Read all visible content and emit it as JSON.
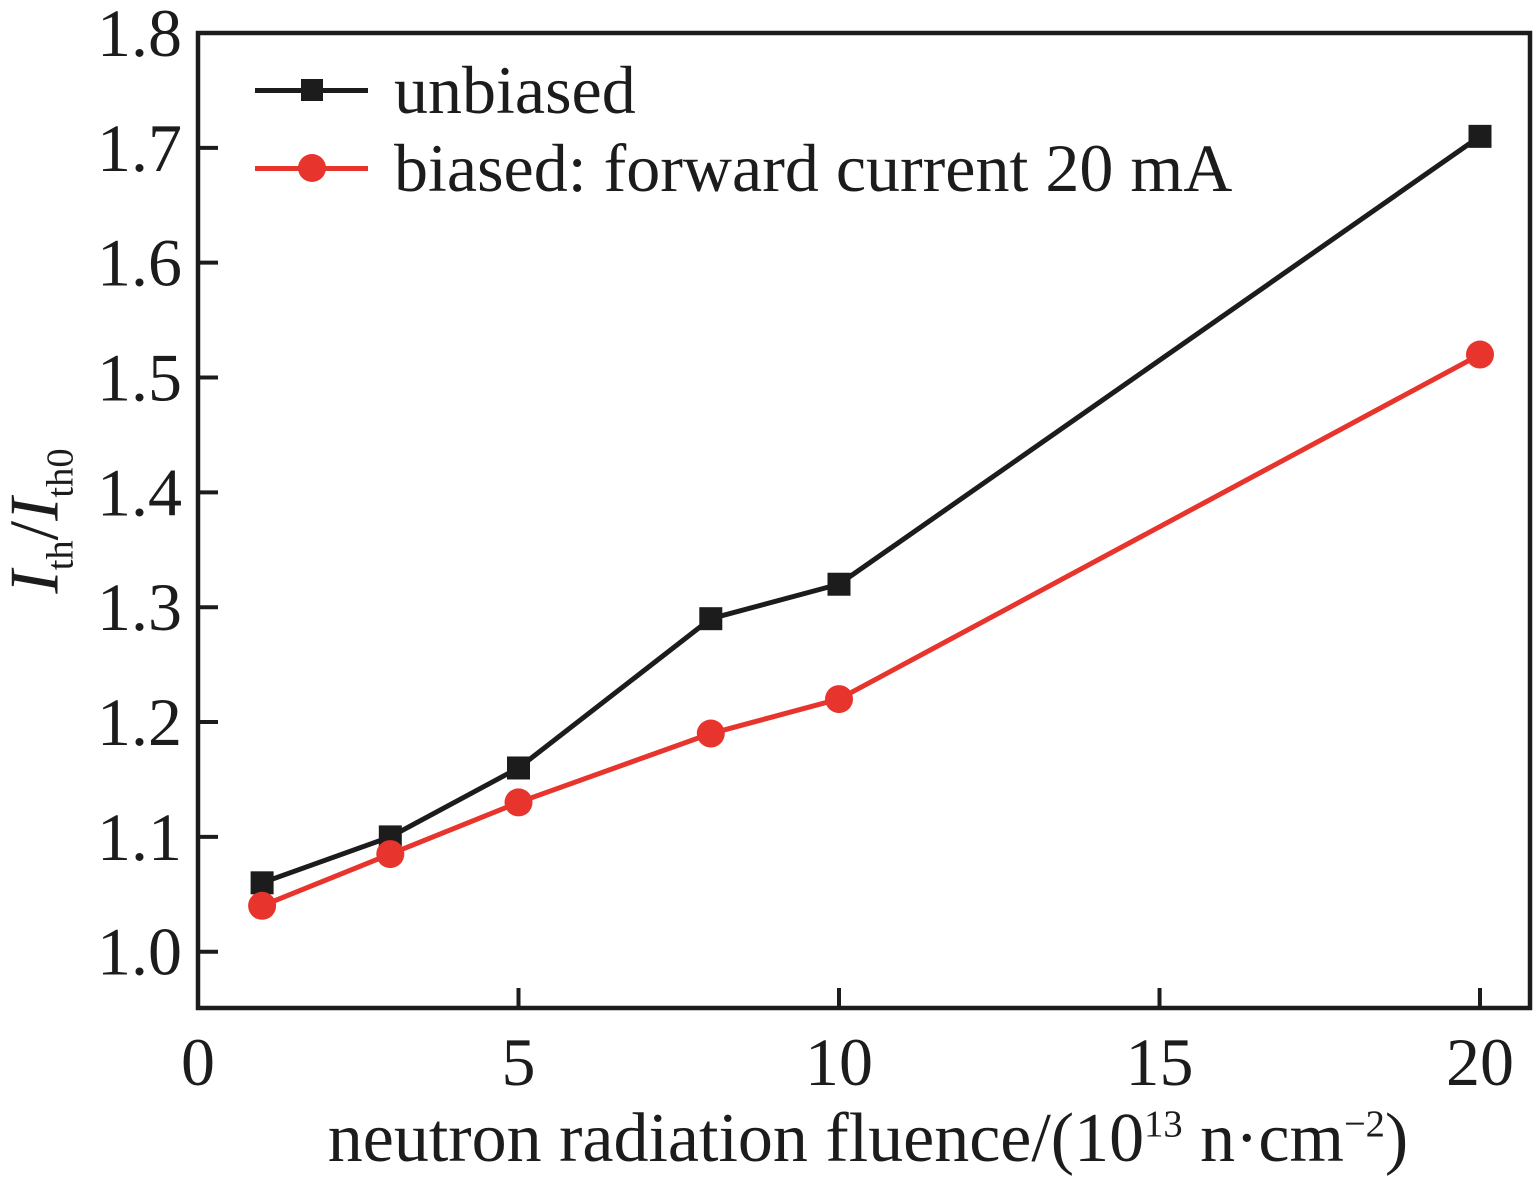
{
  "chart_data": {
    "type": "line",
    "title": "",
    "xlabel_text": "neutron radiation fluence/(10^13 n·cm^-2)",
    "ylabel_text": "Ith/Ith0",
    "xlabel": {
      "pre": "neutron radiation fluence/(10",
      "sup1": "13",
      "mid": " n·cm",
      "sup2": "−2",
      "post": ")"
    },
    "ylabel": {
      "i1": "I",
      "sub1": "th",
      "slash": "/",
      "i2": "I",
      "sub2": "th0"
    },
    "xlim": [
      0,
      20.78
    ],
    "ylim": [
      0.951,
      1.8
    ],
    "grid": false,
    "legend_position": "upper-left",
    "axis_color": "#1c1c1c",
    "x_ticks": [
      {
        "v": 0,
        "label": "0"
      },
      {
        "v": 5,
        "label": "5"
      },
      {
        "v": 10,
        "label": "10"
      },
      {
        "v": 15,
        "label": "15"
      },
      {
        "v": 20,
        "label": "20"
      }
    ],
    "y_ticks": [
      {
        "v": 1.0,
        "label": "1.0"
      },
      {
        "v": 1.1,
        "label": "1.1"
      },
      {
        "v": 1.2,
        "label": "1.2"
      },
      {
        "v": 1.3,
        "label": "1.3"
      },
      {
        "v": 1.4,
        "label": "1.4"
      },
      {
        "v": 1.5,
        "label": "1.5"
      },
      {
        "v": 1.6,
        "label": "1.6"
      },
      {
        "v": 1.7,
        "label": "1.7"
      },
      {
        "v": 1.8,
        "label": "1.8"
      }
    ],
    "series": [
      {
        "name": "unbiased",
        "color": "#1c1c1c",
        "marker": "square",
        "x": [
          1,
          3,
          5,
          8,
          10,
          20
        ],
        "y": [
          1.06,
          1.1,
          1.16,
          1.29,
          1.32,
          1.71
        ]
      },
      {
        "name": "biased: forward current 20 mA",
        "color": "#e7342c",
        "marker": "circle",
        "x": [
          1,
          3,
          5,
          8,
          10,
          20
        ],
        "y": [
          1.04,
          1.085,
          1.13,
          1.19,
          1.22,
          1.52
        ]
      }
    ]
  }
}
